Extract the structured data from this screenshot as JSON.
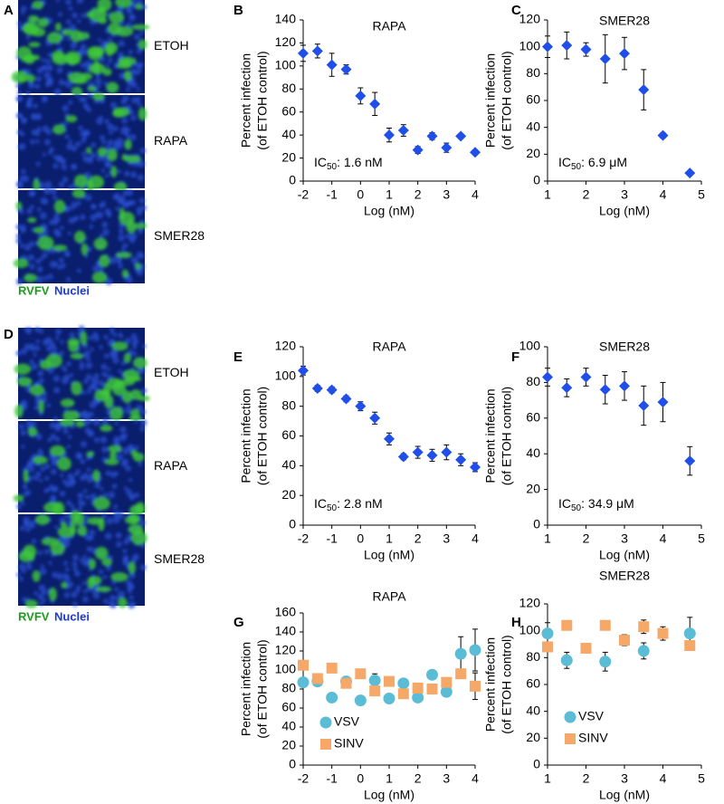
{
  "image_panels": [
    {
      "label": "A",
      "rows": [
        "ETOH",
        "RAPA",
        "SMER28"
      ],
      "stains": [
        "RVFV",
        "Nuclei"
      ]
    },
    {
      "label": "D",
      "rows": [
        "ETOH",
        "RAPA",
        "SMER28"
      ],
      "stains": [
        "RVFV",
        "Nuclei"
      ]
    }
  ],
  "chart_data": [
    {
      "type": "scatter",
      "panel_label": "B",
      "title": "RAPA",
      "x_label": "Log (nM)",
      "y_label": [
        "Percent infection",
        "(of ETOH control)"
      ],
      "xlim": [
        -2,
        4
      ],
      "xticks": [
        -2,
        -1,
        0,
        1,
        2,
        3,
        4
      ],
      "ylim": [
        0,
        140
      ],
      "yticks": [
        0,
        20,
        40,
        60,
        80,
        100,
        120,
        140
      ],
      "annotation": {
        "prefix": "IC",
        "subscript": "50",
        "text": ": 1.6 nM"
      },
      "series": [
        {
          "color": "#1f4fe8",
          "marker": "diamond",
          "x": [
            -2,
            -1.5,
            -1,
            -0.5,
            0,
            0.5,
            1,
            1.5,
            2,
            2.5,
            3,
            3.5,
            4
          ],
          "values": [
            111,
            113,
            101,
            97,
            74,
            67,
            40,
            44,
            27,
            39,
            29,
            39,
            25
          ],
          "errors": [
            7,
            6,
            10,
            4,
            7,
            10,
            6,
            5,
            3,
            3,
            4,
            2,
            2
          ]
        }
      ]
    },
    {
      "type": "scatter",
      "panel_label": "C",
      "title": "SMER28",
      "x_label": "Log (nM)",
      "y_label": [
        "Percent infection",
        "(of ETOH control)"
      ],
      "xlim": [
        1,
        5
      ],
      "xticks": [
        1,
        2,
        3,
        4,
        5
      ],
      "ylim": [
        0,
        120
      ],
      "yticks": [
        0,
        20,
        40,
        60,
        80,
        100,
        120
      ],
      "annotation": {
        "prefix": "IC",
        "subscript": "50",
        "text": ": 6.9 μM"
      },
      "series": [
        {
          "color": "#1f4fe8",
          "marker": "diamond",
          "x": [
            1,
            1.5,
            2,
            2.5,
            3,
            3.5,
            4,
            4.7
          ],
          "values": [
            100,
            101,
            98,
            91,
            95,
            68,
            34,
            6
          ],
          "errors": [
            8,
            10,
            5,
            18,
            12,
            15,
            2,
            1
          ]
        }
      ]
    },
    {
      "type": "scatter",
      "panel_label": "E",
      "title": "RAPA",
      "x_label": "Log (nM)",
      "y_label": [
        "Percent infection",
        "(of ETOH control)"
      ],
      "xlim": [
        -2,
        4
      ],
      "xticks": [
        -2,
        -1,
        0,
        1,
        2,
        3,
        4
      ],
      "ylim": [
        0,
        120
      ],
      "yticks": [
        0,
        20,
        40,
        60,
        80,
        100,
        120
      ],
      "annotation": {
        "prefix": "IC",
        "subscript": "50",
        "text": ": 2.8 nM"
      },
      "series": [
        {
          "color": "#1f4fe8",
          "marker": "diamond",
          "x": [
            -2,
            -1.5,
            -1,
            -0.5,
            0,
            0.5,
            1,
            1.5,
            2,
            2.5,
            3,
            3.5,
            4
          ],
          "values": [
            104,
            92,
            91,
            85,
            80,
            72,
            58,
            46,
            49,
            47,
            49,
            44,
            39
          ],
          "errors": [
            3,
            2,
            2,
            2,
            3,
            4,
            4,
            2,
            4,
            4,
            5,
            4,
            3
          ]
        }
      ]
    },
    {
      "type": "scatter",
      "panel_label": "F",
      "title": "SMER28",
      "x_label": "Log (nM)",
      "y_label": [
        "Percent infection",
        "(of ETOH control)"
      ],
      "xlim": [
        1,
        5
      ],
      "xticks": [
        1,
        2,
        3,
        4,
        5
      ],
      "ylim": [
        0,
        100
      ],
      "yticks": [
        0,
        20,
        40,
        60,
        80,
        100
      ],
      "annotation": {
        "prefix": "IC",
        "subscript": "50",
        "text": ": 34.9 μM"
      },
      "series": [
        {
          "color": "#1f4fe8",
          "marker": "diamond",
          "x": [
            1,
            1.5,
            2,
            2.5,
            3,
            3.5,
            4,
            4.7
          ],
          "values": [
            83,
            77,
            83,
            76,
            78,
            67,
            69,
            36
          ],
          "errors": [
            5,
            5,
            5,
            8,
            8,
            11,
            11,
            8
          ]
        }
      ]
    },
    {
      "type": "scatter",
      "panel_label": "G",
      "title": "RAPA",
      "x_label": "Log (nM)",
      "y_label": [
        "Percent infection",
        "(of ETOH control)"
      ],
      "xlim": [
        -2,
        4
      ],
      "xticks": [
        -2,
        -1,
        0,
        1,
        2,
        3,
        4
      ],
      "ylim": [
        0,
        160
      ],
      "yticks": [
        0,
        20,
        40,
        60,
        80,
        100,
        120,
        140,
        160
      ],
      "legend": "lower left",
      "series": [
        {
          "name": "VSV",
          "color": "#5bbcd6",
          "marker": "circle",
          "x": [
            -2,
            -1.5,
            -1,
            -0.5,
            0,
            0.5,
            1,
            1.5,
            2,
            2.5,
            3,
            3.5,
            4
          ],
          "values": [
            87,
            88,
            71,
            88,
            68,
            89,
            70,
            86,
            71,
            95,
            77,
            117,
            121
          ],
          "errors": [
            5,
            5,
            5,
            5,
            5,
            7,
            5,
            4,
            4,
            5,
            5,
            18,
            22
          ]
        },
        {
          "name": "SINV",
          "color": "#f6a868",
          "marker": "square",
          "x": [
            -2,
            -1.5,
            -1,
            -0.5,
            0,
            0.5,
            1,
            1.5,
            2,
            2.5,
            3,
            3.5,
            4
          ],
          "values": [
            105,
            91,
            102,
            86,
            96,
            78,
            88,
            75,
            81,
            80,
            87,
            96,
            83
          ],
          "errors": [
            3,
            3,
            3,
            3,
            3,
            3,
            3,
            3,
            3,
            3,
            3,
            4,
            14
          ]
        }
      ]
    },
    {
      "type": "scatter",
      "panel_label": "H",
      "title": "SMER28",
      "x_label": "Log (nM)",
      "y_label": [
        "Percent infection",
        "(of ETOH control)"
      ],
      "xlim": [
        1,
        5
      ],
      "xticks": [
        1,
        2,
        3,
        4,
        5
      ],
      "ylim": [
        0,
        120
      ],
      "yticks": [
        0,
        20,
        40,
        60,
        80,
        100,
        120
      ],
      "legend": "lower left",
      "series": [
        {
          "name": "VSV",
          "color": "#5bbcd6",
          "marker": "circle",
          "x": [
            1,
            1.5,
            2.5,
            3.5,
            4.7
          ],
          "values": [
            98,
            78,
            77,
            85,
            98
          ],
          "errors": [
            8,
            6,
            7,
            6,
            12
          ]
        },
        {
          "name": "SINV",
          "color": "#f6a868",
          "marker": "square",
          "x": [
            1,
            1.5,
            2,
            2.5,
            3,
            3.5,
            4,
            4.7
          ],
          "values": [
            88,
            104,
            87,
            104,
            93,
            103,
            98,
            89
          ],
          "errors": [
            3,
            3,
            3,
            3,
            4,
            5,
            5,
            3
          ]
        }
      ]
    }
  ]
}
